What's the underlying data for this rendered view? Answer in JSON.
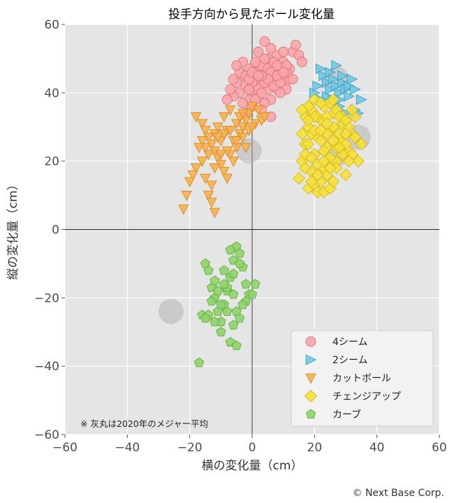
{
  "chart_data": {
    "type": "scatter",
    "title": "投手方向から見たボール変化量",
    "xlabel": "横の変化量（cm）",
    "ylabel": "縦の変化量（cm）",
    "xlim": [
      -60,
      60
    ],
    "ylim": [
      -60,
      60
    ],
    "xticks": [
      "−60",
      "−40",
      "−20",
      "0",
      "20",
      "40",
      "60"
    ],
    "yticks": [
      "−60",
      "−40",
      "−20",
      "0",
      "20",
      "40",
      "60"
    ],
    "grid": true,
    "legend_position": "bottom-right",
    "note": "※ 灰丸は2020年のメジャー平均",
    "mlb_average_points": [
      {
        "x": -1,
        "y": 23
      },
      {
        "x": 27,
        "y": 44
      },
      {
        "x": 34,
        "y": 27
      },
      {
        "x": 27,
        "y": 22
      },
      {
        "x": -26,
        "y": -24
      }
    ],
    "series": [
      {
        "name": "4シーム",
        "marker": "circle",
        "color": "#f8a5a8",
        "edge": "#e0707a",
        "points": [
          [
            0,
            40
          ],
          [
            1,
            44
          ],
          [
            2,
            48
          ],
          [
            3,
            42
          ],
          [
            4,
            46
          ],
          [
            5,
            50
          ],
          [
            6,
            43
          ],
          [
            7,
            47
          ],
          [
            8,
            41
          ],
          [
            9,
            45
          ],
          [
            -1,
            38
          ],
          [
            -2,
            42
          ],
          [
            -3,
            45
          ],
          [
            -4,
            40
          ],
          [
            -5,
            43
          ],
          [
            -6,
            39
          ],
          [
            -7,
            41
          ],
          [
            -8,
            38
          ],
          [
            -3,
            49
          ],
          [
            -1,
            47
          ],
          [
            2,
            52
          ],
          [
            4,
            55
          ],
          [
            6,
            53
          ],
          [
            8,
            51
          ],
          [
            10,
            49
          ],
          [
            12,
            47
          ],
          [
            13,
            52
          ],
          [
            14,
            54
          ],
          [
            15,
            51
          ],
          [
            16,
            49
          ],
          [
            10,
            44
          ],
          [
            11,
            41
          ],
          [
            12,
            44
          ],
          [
            6,
            38
          ],
          [
            4,
            37
          ],
          [
            2,
            39
          ],
          [
            0,
            36
          ],
          [
            -2,
            34
          ],
          [
            3,
            35
          ],
          [
            5,
            41
          ],
          [
            7,
            44
          ],
          [
            9,
            40
          ],
          [
            1,
            46
          ],
          [
            3,
            48
          ],
          [
            5,
            47
          ],
          [
            7,
            49
          ],
          [
            9,
            47
          ],
          [
            11,
            46
          ],
          [
            -4,
            46
          ],
          [
            -6,
            44
          ],
          [
            -5,
            48
          ],
          [
            -2,
            45
          ],
          [
            0,
            43
          ],
          [
            2,
            41
          ],
          [
            4,
            43
          ],
          [
            6,
            46
          ],
          [
            8,
            48
          ],
          [
            10,
            52
          ],
          [
            -3,
            37
          ],
          [
            -1,
            41
          ],
          [
            1,
            38
          ],
          [
            3,
            40
          ],
          [
            5,
            44
          ],
          [
            7,
            42
          ],
          [
            9,
            43
          ],
          [
            11,
            48
          ],
          [
            13,
            44
          ],
          [
            6,
            33
          ],
          [
            3,
            45
          ],
          [
            1,
            49
          ],
          [
            -1,
            44
          ],
          [
            0,
            46
          ],
          [
            2,
            45
          ],
          [
            4,
            50
          ],
          [
            8,
            45
          ],
          [
            10,
            46
          ]
        ]
      },
      {
        "name": "2シーム",
        "marker": "triangle-right",
        "color": "#6fc8e4",
        "edge": "#3fa0c4",
        "points": [
          [
            22,
            47
          ],
          [
            24,
            43
          ],
          [
            25,
            41
          ],
          [
            26,
            44
          ],
          [
            27,
            42
          ],
          [
            28,
            40
          ],
          [
            29,
            43
          ],
          [
            30,
            41
          ],
          [
            31,
            39
          ],
          [
            32,
            44
          ],
          [
            24,
            39
          ],
          [
            26,
            38
          ],
          [
            28,
            36
          ],
          [
            30,
            34
          ],
          [
            33,
            35
          ],
          [
            35,
            38
          ],
          [
            20,
            40
          ],
          [
            22,
            38
          ],
          [
            23,
            45
          ],
          [
            25,
            46
          ],
          [
            27,
            48
          ],
          [
            29,
            45
          ],
          [
            31,
            42
          ],
          [
            33,
            41
          ],
          [
            21,
            42
          ],
          [
            28,
            38
          ],
          [
            34,
            34
          ]
        ]
      },
      {
        "name": "カットボール",
        "marker": "triangle-down",
        "color": "#f6b04f",
        "edge": "#d88a24",
        "points": [
          [
            -18,
            33
          ],
          [
            -16,
            31
          ],
          [
            -15,
            29
          ],
          [
            -14,
            27
          ],
          [
            -13,
            25
          ],
          [
            -12,
            23
          ],
          [
            -11,
            21
          ],
          [
            -10,
            19
          ],
          [
            -9,
            17
          ],
          [
            -8,
            15
          ],
          [
            -7,
            22
          ],
          [
            -6,
            26
          ],
          [
            -5,
            24
          ],
          [
            -4,
            28
          ],
          [
            -3,
            30
          ],
          [
            -2,
            32
          ],
          [
            -1,
            34
          ],
          [
            0,
            36
          ],
          [
            -8,
            29
          ],
          [
            -10,
            26
          ],
          [
            -12,
            28
          ],
          [
            -14,
            22
          ],
          [
            -16,
            20
          ],
          [
            -18,
            18
          ],
          [
            -19,
            16
          ],
          [
            -20,
            14
          ],
          [
            -21,
            10
          ],
          [
            -22,
            6
          ],
          [
            -14,
            10
          ],
          [
            -13,
            8
          ],
          [
            -12,
            5
          ],
          [
            -15,
            24
          ],
          [
            -11,
            30
          ],
          [
            -9,
            33
          ],
          [
            -7,
            35
          ],
          [
            -5,
            31
          ],
          [
            -3,
            27
          ],
          [
            -1,
            29
          ],
          [
            1,
            31
          ],
          [
            3,
            32
          ],
          [
            -6,
            20
          ],
          [
            -8,
            23
          ],
          [
            -10,
            22
          ],
          [
            -12,
            18
          ],
          [
            -16,
            26
          ],
          [
            -17,
            24
          ],
          [
            -9,
            28
          ],
          [
            -4,
            33
          ],
          [
            2,
            35
          ],
          [
            4,
            33
          ],
          [
            -2,
            24
          ],
          [
            -13,
            13
          ],
          [
            -11,
            27
          ],
          [
            -7,
            29
          ],
          [
            -3,
            34
          ],
          [
            0,
            30
          ],
          [
            -15,
            15
          ],
          [
            -5,
            26
          ]
        ]
      },
      {
        "name": "チェンジアップ",
        "marker": "diamond",
        "color": "#f5e03a",
        "edge": "#d2b81a",
        "points": [
          [
            15,
            15
          ],
          [
            16,
            20
          ],
          [
            17,
            25
          ],
          [
            18,
            30
          ],
          [
            19,
            35
          ],
          [
            20,
            22
          ],
          [
            21,
            27
          ],
          [
            22,
            32
          ],
          [
            23,
            18
          ],
          [
            24,
            24
          ],
          [
            25,
            29
          ],
          [
            26,
            34
          ],
          [
            27,
            20
          ],
          [
            28,
            26
          ],
          [
            29,
            31
          ],
          [
            30,
            16
          ],
          [
            31,
            23
          ],
          [
            32,
            28
          ],
          [
            33,
            33
          ],
          [
            18,
            12
          ],
          [
            19,
            17
          ],
          [
            20,
            13
          ],
          [
            21,
            11
          ],
          [
            22,
            14
          ],
          [
            23,
            11
          ],
          [
            24,
            16
          ],
          [
            25,
            12
          ],
          [
            26,
            14
          ],
          [
            27,
            18
          ],
          [
            17,
            22
          ],
          [
            19,
            28
          ],
          [
            21,
            33
          ],
          [
            23,
            36
          ],
          [
            25,
            37
          ],
          [
            27,
            35
          ],
          [
            29,
            33
          ],
          [
            31,
            30
          ],
          [
            33,
            27
          ],
          [
            35,
            25
          ],
          [
            16,
            28
          ],
          [
            17,
            33
          ],
          [
            18,
            36
          ],
          [
            20,
            38
          ],
          [
            22,
            37
          ],
          [
            24,
            33
          ],
          [
            26,
            30
          ],
          [
            28,
            28
          ],
          [
            30,
            25
          ],
          [
            32,
            22
          ],
          [
            34,
            20
          ],
          [
            19,
            21
          ],
          [
            21,
            19
          ],
          [
            23,
            23
          ],
          [
            25,
            21
          ],
          [
            27,
            24
          ],
          [
            29,
            22
          ],
          [
            31,
            20
          ],
          [
            18,
            25
          ],
          [
            20,
            29
          ],
          [
            22,
            26
          ],
          [
            24,
            28
          ],
          [
            26,
            26
          ],
          [
            28,
            24
          ],
          [
            30,
            28
          ],
          [
            17,
            18
          ],
          [
            19,
            14
          ],
          [
            21,
            16
          ],
          [
            23,
            20
          ],
          [
            25,
            18
          ],
          [
            20,
            33
          ],
          [
            22,
            29
          ],
          [
            24,
            31
          ],
          [
            26,
            38
          ],
          [
            16,
            35
          ],
          [
            18,
            32
          ],
          [
            28,
            33
          ],
          [
            30,
            32
          ],
          [
            32,
            35
          ]
        ]
      },
      {
        "name": "カーブ",
        "marker": "pentagon",
        "color": "#8fd36a",
        "edge": "#5fae3d",
        "points": [
          [
            -17,
            -39
          ],
          [
            -16,
            -25
          ],
          [
            -15,
            -10
          ],
          [
            -14,
            -12
          ],
          [
            -13,
            -17
          ],
          [
            -12,
            -20
          ],
          [
            -11,
            -24
          ],
          [
            -10,
            -27
          ],
          [
            -9,
            -22
          ],
          [
            -8,
            -18
          ],
          [
            -7,
            -14
          ],
          [
            -6,
            -9
          ],
          [
            -5,
            -5
          ],
          [
            -4,
            -7
          ],
          [
            -3,
            -11
          ],
          [
            -2,
            -16
          ],
          [
            -1,
            -19
          ],
          [
            0,
            -19
          ],
          [
            1,
            -16
          ],
          [
            -14,
            -25
          ],
          [
            -12,
            -27
          ],
          [
            -10,
            -22
          ],
          [
            -8,
            -17
          ],
          [
            -6,
            -13
          ],
          [
            -4,
            -10
          ],
          [
            -2,
            -21
          ],
          [
            -5,
            -24
          ],
          [
            -6,
            -28
          ],
          [
            -7,
            -33
          ],
          [
            -5,
            -34
          ],
          [
            -9,
            -16
          ],
          [
            -11,
            -18
          ],
          [
            -13,
            -21
          ],
          [
            -7,
            -6
          ],
          [
            -4,
            -26
          ],
          [
            -3,
            -22
          ],
          [
            -8,
            -24
          ],
          [
            -10,
            -30
          ],
          [
            -12,
            -15
          ],
          [
            -15,
            -26
          ],
          [
            -6,
            -19
          ],
          [
            -9,
            -12
          ]
        ]
      }
    ]
  },
  "credit": "© Next Base Corp."
}
